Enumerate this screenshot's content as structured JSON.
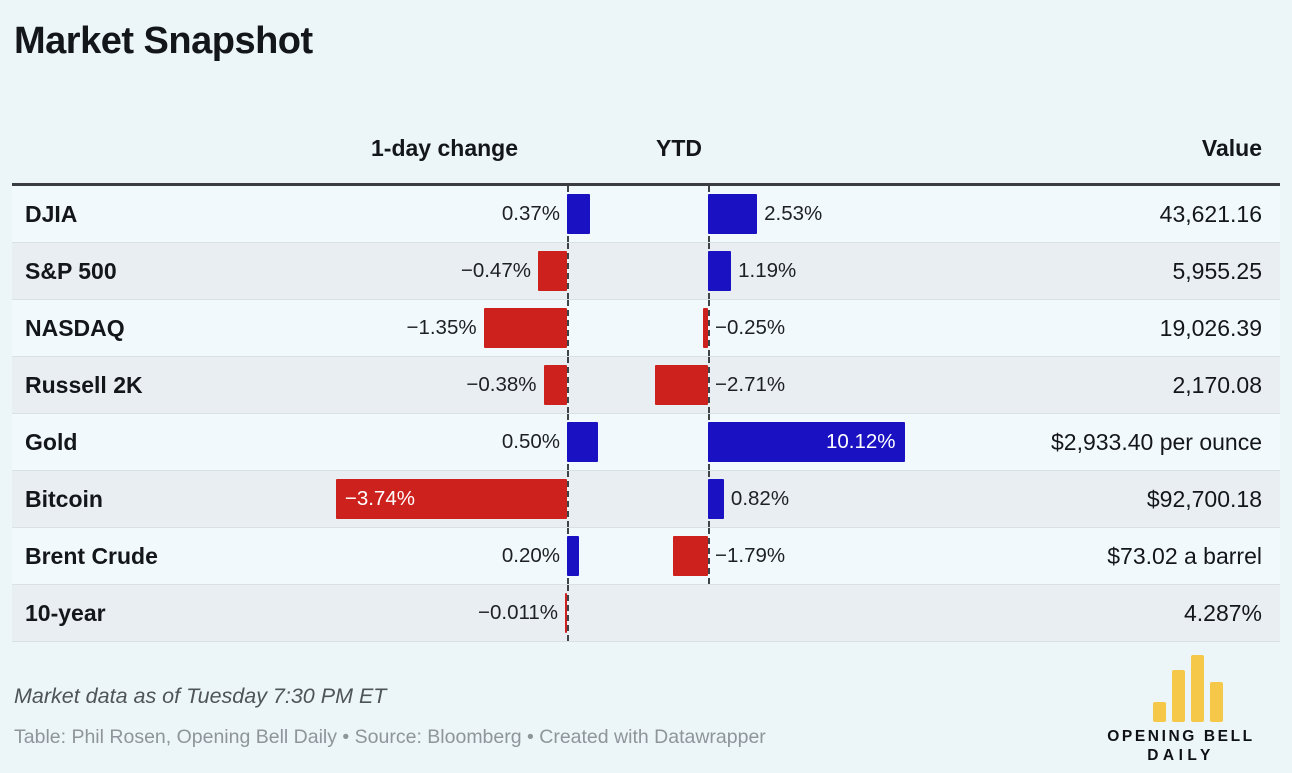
{
  "title": "Market Snapshot",
  "columns": {
    "change": "1-day change",
    "ytd": "YTD",
    "value": "Value"
  },
  "rows": [
    {
      "label": "DJIA",
      "change": 0.37,
      "change_label": "0.37%",
      "ytd": 2.53,
      "ytd_label": "2.53%",
      "value": "43,621.16"
    },
    {
      "label": "S&P 500",
      "change": -0.47,
      "change_label": "−0.47%",
      "ytd": 1.19,
      "ytd_label": "1.19%",
      "value": "5,955.25"
    },
    {
      "label": "NASDAQ",
      "change": -1.35,
      "change_label": "−1.35%",
      "ytd": -0.25,
      "ytd_label": "−0.25%",
      "value": "19,026.39"
    },
    {
      "label": "Russell 2K",
      "change": -0.38,
      "change_label": "−0.38%",
      "ytd": -2.71,
      "ytd_label": "−2.71%",
      "value": "2,170.08"
    },
    {
      "label": "Gold",
      "change": 0.5,
      "change_label": "0.50%",
      "ytd": 10.12,
      "ytd_label": "10.12%",
      "value": "$2,933.40 per ounce"
    },
    {
      "label": "Bitcoin",
      "change": -3.74,
      "change_label": "−3.74%",
      "ytd": 0.82,
      "ytd_label": "0.82%",
      "value": "$92,700.18"
    },
    {
      "label": "Brent Crude",
      "change": 0.2,
      "change_label": "0.20%",
      "ytd": -1.79,
      "ytd_label": "−1.79%",
      "value": "$73.02 a barrel"
    },
    {
      "label": "10-year",
      "change": -0.011,
      "change_label": "−0.011%",
      "ytd": null,
      "ytd_label": "",
      "value": "4.287%"
    }
  ],
  "colors": {
    "positive": "#1a12c2",
    "negative": "#cd211d",
    "logo_gold": "#f6c84a",
    "background": "#ecf5f8"
  },
  "footer": {
    "note": "Market data as of Tuesday 7:30 PM ET",
    "credit": "Table: Phil Rosen, Opening Bell Daily • Source: Bloomberg • Created with Datawrapper"
  },
  "logo": {
    "line1": "OPENING BELL",
    "line2": "DAILY"
  },
  "chart_data": {
    "type": "table",
    "title": "Market Snapshot",
    "categories": [
      "DJIA",
      "S&P 500",
      "NASDAQ",
      "Russell 2K",
      "Gold",
      "Bitcoin",
      "Brent Crude",
      "10-year"
    ],
    "series": [
      {
        "name": "1-day change (%)",
        "values": [
          0.37,
          -0.47,
          -1.35,
          -0.38,
          0.5,
          -3.74,
          0.2,
          -0.011
        ]
      },
      {
        "name": "YTD (%)",
        "values": [
          2.53,
          1.19,
          -0.25,
          -2.71,
          10.12,
          0.82,
          -1.79,
          null
        ]
      }
    ],
    "value_column": [
      "43,621.16",
      "5,955.25",
      "19,026.39",
      "2,170.08",
      "$2,933.40 per ounce",
      "$92,700.18",
      "$73.02 a barrel",
      "4.287%"
    ],
    "legend_position": "none",
    "grid": false,
    "bar_colors": {
      "positive": "#1a12c2",
      "negative": "#cd211d"
    },
    "notes": "Market data as of Tuesday 7:30 PM ET",
    "source": "Table: Phil Rosen, Opening Bell Daily • Source: Bloomberg • Created with Datawrapper"
  }
}
